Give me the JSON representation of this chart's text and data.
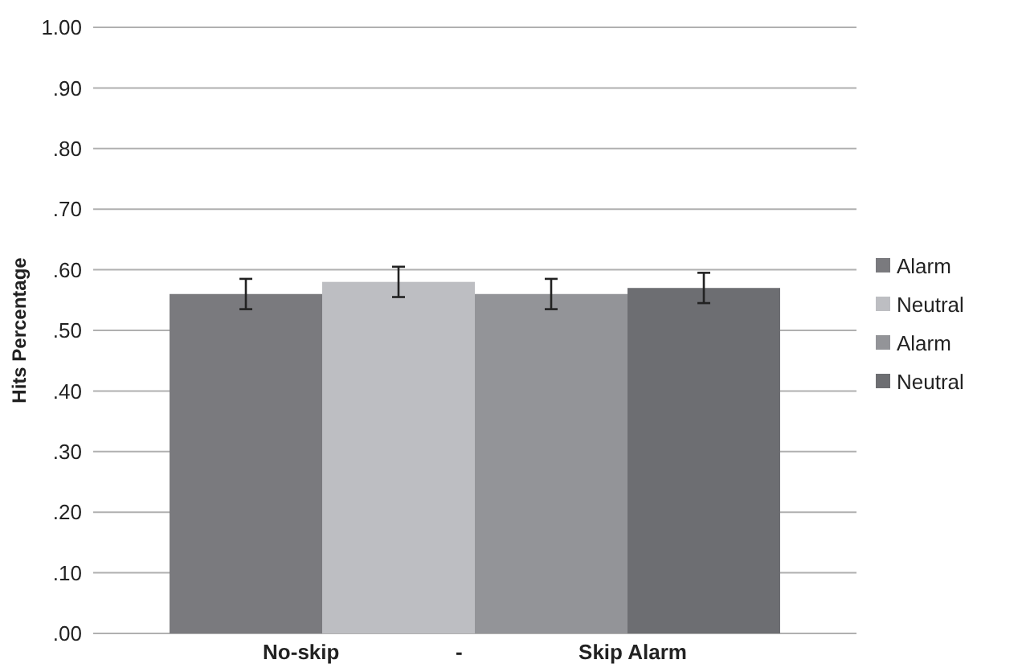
{
  "chart_data": {
    "type": "bar",
    "ylabel": "Hits Percentage",
    "categories": [
      "No-skip                    -                    Skip Alarm"
    ],
    "series": [
      {
        "name": "Alarm",
        "color": "#7a7a7e",
        "values": [
          0.56
        ],
        "errors": [
          0.025
        ]
      },
      {
        "name": "Neutral",
        "color": "#bdbec2",
        "values": [
          0.58
        ],
        "errors": [
          0.025
        ]
      },
      {
        "name": "Alarm",
        "color": "#939498",
        "values": [
          0.56
        ],
        "errors": [
          0.025
        ]
      },
      {
        "name": "Neutral",
        "color": "#6d6e72",
        "values": [
          0.57
        ],
        "errors": [
          0.025
        ]
      }
    ],
    "ylim": [
      0,
      1
    ],
    "yticks": [
      {
        "value": 0,
        "label": ".00"
      },
      {
        "value": 0.1,
        "label": ".10"
      },
      {
        "value": 0.2,
        "label": ".20"
      },
      {
        "value": 0.3,
        "label": ".30"
      },
      {
        "value": 0.4,
        "label": ".40"
      },
      {
        "value": 0.5,
        "label": ".50"
      },
      {
        "value": 0.6,
        "label": ".60"
      },
      {
        "value": 0.7,
        "label": ".70"
      },
      {
        "value": 0.8,
        "label": ".80"
      },
      {
        "value": 0.9,
        "label": ".90"
      },
      {
        "value": 1,
        "label": "1.00"
      }
    ],
    "grid": "y",
    "legend": "right"
  }
}
